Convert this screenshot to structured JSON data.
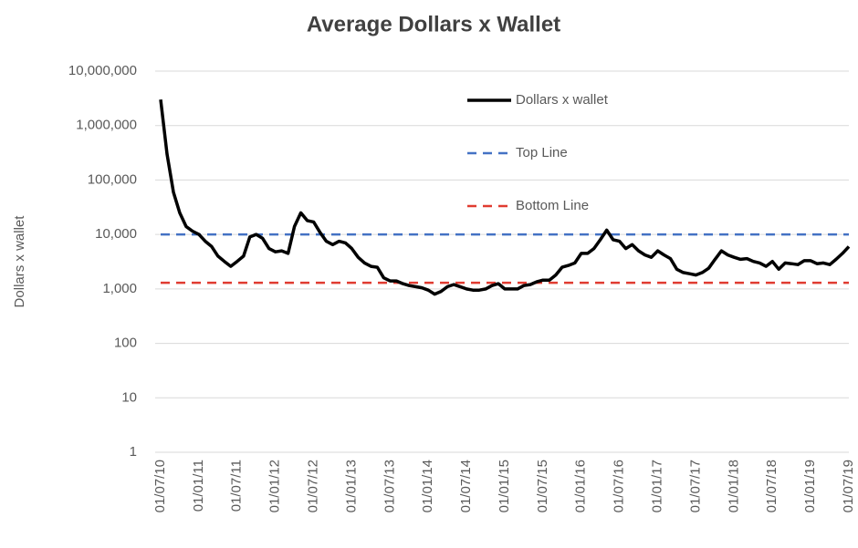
{
  "chart_data": {
    "type": "line",
    "title": "Average Dollars x Wallet",
    "y_label": "Dollars x wallet",
    "log_scale_y": true,
    "grid": true,
    "legend": "top",
    "categories": [
      "01/07/10",
      null,
      null,
      null,
      null,
      null,
      "01/01/11",
      null,
      null,
      null,
      null,
      null,
      "01/07/11",
      null,
      null,
      null,
      null,
      null,
      "01/01/12",
      null,
      null,
      null,
      null,
      null,
      "01/07/12",
      null,
      null,
      null,
      null,
      null,
      "01/01/13",
      null,
      null,
      null,
      null,
      null,
      "01/07/13",
      null,
      null,
      null,
      null,
      null,
      "01/01/14",
      null,
      null,
      null,
      null,
      null,
      "01/07/14",
      null,
      null,
      null,
      null,
      null,
      "01/01/15",
      null,
      null,
      null,
      null,
      null,
      "01/07/15",
      null,
      null,
      null,
      null,
      null,
      "01/01/16",
      null,
      null,
      null,
      null,
      null,
      "01/07/16",
      null,
      null,
      null,
      null,
      null,
      "01/01/17",
      null,
      null,
      null,
      null,
      null,
      "01/07/17",
      null,
      null,
      null,
      null,
      null,
      "01/01/18",
      null,
      null,
      null,
      null,
      null,
      "01/07/18",
      null,
      null,
      null,
      null,
      null,
      "01/01/19",
      null,
      null,
      null,
      null,
      null,
      "01/07/19"
    ],
    "series": [
      {
        "name": "Dollars x wallet",
        "color": "#000000",
        "linestyle": "solid",
        "values": [
          3000000,
          300000,
          60000,
          25000,
          14000,
          11500,
          10000,
          7500,
          6000,
          4000,
          3200,
          2600,
          3200,
          4000,
          9000,
          10000,
          8500,
          5500,
          4800,
          5000,
          4500,
          14000,
          25000,
          18000,
          17000,
          11000,
          7500,
          6500,
          7500,
          7000,
          5500,
          3800,
          3000,
          2600,
          2500,
          1600,
          1400,
          1400,
          1250,
          1150,
          1100,
          1050,
          950,
          800,
          900,
          1100,
          1200,
          1100,
          1000,
          950,
          950,
          1000,
          1150,
          1250,
          1000,
          1000,
          1000,
          1150,
          1200,
          1350,
          1450,
          1450,
          1800,
          2500,
          2700,
          3000,
          4500,
          4500,
          5500,
          8000,
          12000,
          8000,
          7500,
          5500,
          6500,
          5000,
          4200,
          3800,
          5000,
          4200,
          3600,
          2300,
          2000,
          1900,
          1800,
          2000,
          2400,
          3500,
          5000,
          4200,
          3800,
          3500,
          3600,
          3200,
          3000,
          2600,
          3200,
          2300,
          3000,
          2900,
          2800,
          3300,
          3300,
          2900,
          3000,
          2800,
          3500,
          4500,
          6000
        ]
      },
      {
        "name": "Top Line",
        "color": "#4472c4",
        "linestyle": "dashed",
        "values": [
          10000,
          10000,
          10000,
          10000,
          10000,
          10000,
          10000,
          10000,
          10000,
          10000,
          10000,
          10000,
          10000,
          10000,
          10000,
          10000,
          10000,
          10000,
          10000,
          10000,
          10000,
          10000,
          10000,
          10000,
          10000,
          10000,
          10000,
          10000,
          10000,
          10000,
          10000,
          10000,
          10000,
          10000,
          10000,
          10000,
          10000,
          10000,
          10000,
          10000,
          10000,
          10000,
          10000,
          10000,
          10000,
          10000,
          10000,
          10000,
          10000,
          10000,
          10000,
          10000,
          10000,
          10000,
          10000,
          10000,
          10000,
          10000,
          10000,
          10000,
          10000,
          10000,
          10000,
          10000,
          10000,
          10000,
          10000,
          10000,
          10000,
          10000,
          10000,
          10000,
          10000,
          10000,
          10000,
          10000,
          10000,
          10000,
          10000,
          10000,
          10000,
          10000,
          10000,
          10000,
          10000,
          10000,
          10000,
          10000,
          10000,
          10000,
          10000,
          10000,
          10000,
          10000,
          10000,
          10000,
          10000,
          10000,
          10000,
          10000,
          10000,
          10000,
          10000,
          10000,
          10000,
          10000,
          10000,
          10000,
          10000
        ]
      },
      {
        "name": "Bottom Line",
        "color": "#e03c31",
        "linestyle": "dashed",
        "values": [
          1300,
          1300,
          1300,
          1300,
          1300,
          1300,
          1300,
          1300,
          1300,
          1300,
          1300,
          1300,
          1300,
          1300,
          1300,
          1300,
          1300,
          1300,
          1300,
          1300,
          1300,
          1300,
          1300,
          1300,
          1300,
          1300,
          1300,
          1300,
          1300,
          1300,
          1300,
          1300,
          1300,
          1300,
          1300,
          1300,
          1300,
          1300,
          1300,
          1300,
          1300,
          1300,
          1300,
          1300,
          1300,
          1300,
          1300,
          1300,
          1300,
          1300,
          1300,
          1300,
          1300,
          1300,
          1300,
          1300,
          1300,
          1300,
          1300,
          1300,
          1300,
          1300,
          1300,
          1300,
          1300,
          1300,
          1300,
          1300,
          1300,
          1300,
          1300,
          1300,
          1300,
          1300,
          1300,
          1300,
          1300,
          1300,
          1300,
          1300,
          1300,
          1300,
          1300,
          1300,
          1300,
          1300,
          1300,
          1300,
          1300,
          1300,
          1300,
          1300,
          1300,
          1300,
          1300,
          1300,
          1300,
          1300,
          1300,
          1300,
          1300,
          1300,
          1300,
          1300,
          1300,
          1300,
          1300,
          1300,
          1300
        ]
      }
    ],
    "ylim": [
      1,
      10000000
    ],
    "yticks": [
      1,
      10,
      100,
      {
        "value": 1000,
        "label": "1,000"
      },
      {
        "value": 10000,
        "label": "10,000"
      },
      {
        "value": 100000,
        "label": "100,000"
      },
      {
        "value": 1000000,
        "label": "1,000,000"
      },
      {
        "value": 10000000,
        "label": "10,000,000"
      }
    ]
  }
}
